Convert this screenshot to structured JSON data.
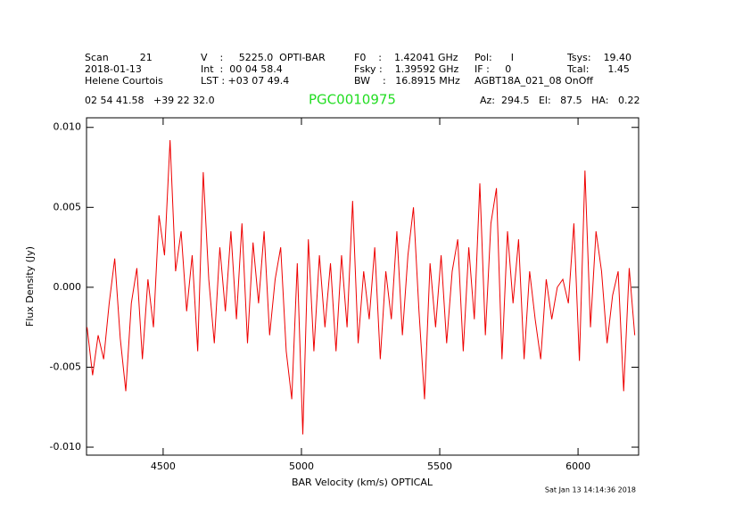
{
  "chart_data": {
    "type": "line",
    "title": "PGC0010975",
    "header": [
      [
        "Scan          21",
        "V    :     5225.0  OPTI-BAR",
        "F0    :    1.42041 GHz",
        "Pol:      I",
        "Tsys:    19.40"
      ],
      [
        "2018-01-13",
        "Int  :  00 04 58.4",
        "Fsky :    1.39592 GHz",
        "IF :     0",
        "Tcal:      1.45"
      ],
      [
        "Helene Courtois",
        "LST : +03 07 49.4",
        "BW    :   16.8915 MHz",
        "AGBT18A_021_08 OnOff"
      ]
    ],
    "coords": "02 54 41.58   +39 22 32.0",
    "pointing": "Az:  294.5   El:   87.5   HA:   0.22",
    "xlabel": "BAR Velocity (km/s) OPTICAL",
    "ylabel": "Flux Density (Jy)",
    "footer": "Sat Jan 13 14:14:36 2018",
    "color": "#ee0000",
    "xlim": [
      4223,
      6219
    ],
    "ylim": [
      -0.0105,
      0.0106
    ],
    "xticks": [
      4500,
      5000,
      5500,
      6000
    ],
    "yticks": [
      {
        "value": 0.01,
        "label": "0.010"
      },
      0.005,
      {
        "value": 0,
        "label": "0.000"
      },
      -0.005,
      {
        "value": -0.01,
        "label": "-0.010"
      }
    ],
    "x": [
      4225,
      4245,
      4265,
      4285,
      4305,
      4325,
      4345,
      4365,
      4385,
      4405,
      4425,
      4445,
      4465,
      4485,
      4505,
      4525,
      4545,
      4565,
      4585,
      4605,
      4625,
      4645,
      4665,
      4685,
      4705,
      4725,
      4745,
      4765,
      4785,
      4805,
      4825,
      4845,
      4865,
      4885,
      4905,
      4925,
      4945,
      4965,
      4985,
      5005,
      5025,
      5045,
      5065,
      5085,
      5105,
      5125,
      5145,
      5165,
      5185,
      5205,
      5225,
      5245,
      5265,
      5285,
      5305,
      5325,
      5345,
      5365,
      5385,
      5405,
      5425,
      5445,
      5465,
      5485,
      5505,
      5525,
      5545,
      5565,
      5585,
      5605,
      5625,
      5645,
      5665,
      5685,
      5705,
      5725,
      5745,
      5765,
      5785,
      5805,
      5825,
      5845,
      5865,
      5885,
      5905,
      5925,
      5945,
      5965,
      5985,
      6005,
      6025,
      6045,
      6065,
      6085,
      6105,
      6125,
      6145,
      6165,
      6185,
      6205
    ],
    "values": [
      -0.0025,
      -0.0055,
      -0.003,
      -0.0045,
      -0.001,
      0.0018,
      -0.0032,
      -0.0065,
      -0.001,
      0.0012,
      -0.0045,
      0.0005,
      -0.0025,
      0.0045,
      0.002,
      0.0092,
      0.001,
      0.0035,
      -0.0015,
      0.002,
      -0.004,
      0.0072,
      0.0005,
      -0.0035,
      0.0025,
      -0.0015,
      0.0035,
      -0.002,
      0.004,
      -0.0035,
      0.0028,
      -0.001,
      0.0035,
      -0.003,
      0.0005,
      0.0025,
      -0.004,
      -0.007,
      0.0015,
      -0.0092,
      0.003,
      -0.004,
      0.002,
      -0.0025,
      0.0015,
      -0.004,
      0.002,
      -0.0025,
      0.0054,
      -0.0035,
      0.001,
      -0.002,
      0.0025,
      -0.0045,
      0.001,
      -0.002,
      0.0035,
      -0.003,
      0.002,
      0.005,
      -0.0015,
      -0.007,
      0.0015,
      -0.0025,
      0.002,
      -0.0035,
      0.001,
      0.003,
      -0.004,
      0.0025,
      -0.002,
      0.0065,
      -0.003,
      0.004,
      0.0062,
      -0.0045,
      0.0035,
      -0.001,
      0.003,
      -0.0045,
      0.001,
      -0.002,
      -0.0045,
      0.0005,
      -0.002,
      0,
      0.0005,
      -0.001,
      0.004,
      -0.0046,
      0.0073,
      -0.0025,
      0.0035,
      0.001,
      -0.0035,
      -0.0005,
      0.001,
      -0.0065,
      0.0012,
      -0.003
    ]
  }
}
